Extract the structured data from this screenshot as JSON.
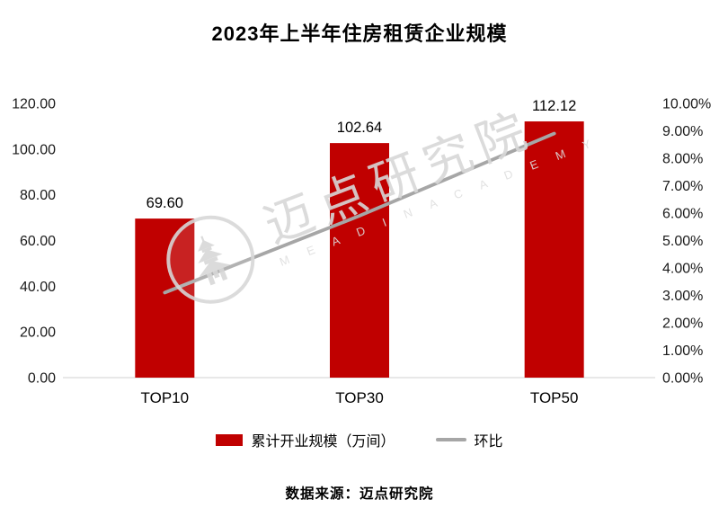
{
  "title": "2023年上半年住房租赁企业规模",
  "source": "数据来源：迈点研究院",
  "watermark": {
    "text": "迈点研究院",
    "subtext": "M E A D I N   A C A D E M Y"
  },
  "colors": {
    "bar": "#c00000",
    "line": "#a6a6a6",
    "axis_line": "#d9d9d9",
    "text": "#1a1a1a"
  },
  "chart_data": {
    "type": "bar+line",
    "title": "2023年上半年住房租赁企业规模",
    "categories": [
      "TOP10",
      "TOP30",
      "TOP50"
    ],
    "series": [
      {
        "name": "累计开业规模（万间）",
        "type": "bar",
        "axis": "left",
        "values": [
          69.6,
          102.64,
          112.12
        ],
        "labels": [
          "69.60",
          "102.64",
          "112.12"
        ]
      },
      {
        "name": "环比",
        "type": "line",
        "axis": "right",
        "values": [
          3.1,
          5.9,
          8.9
        ]
      }
    ],
    "left_axis": {
      "min": 0,
      "max": 120,
      "step": 20,
      "labels": [
        "0.00",
        "20.00",
        "40.00",
        "60.00",
        "80.00",
        "100.00",
        "120.00"
      ]
    },
    "right_axis": {
      "min": 0,
      "max": 10,
      "step": 1,
      "labels": [
        "0.00%",
        "1.00%",
        "2.00%",
        "3.00%",
        "4.00%",
        "5.00%",
        "6.00%",
        "7.00%",
        "8.00%",
        "9.00%",
        "10.00%"
      ]
    },
    "grid": false,
    "legend_position": "bottom"
  }
}
